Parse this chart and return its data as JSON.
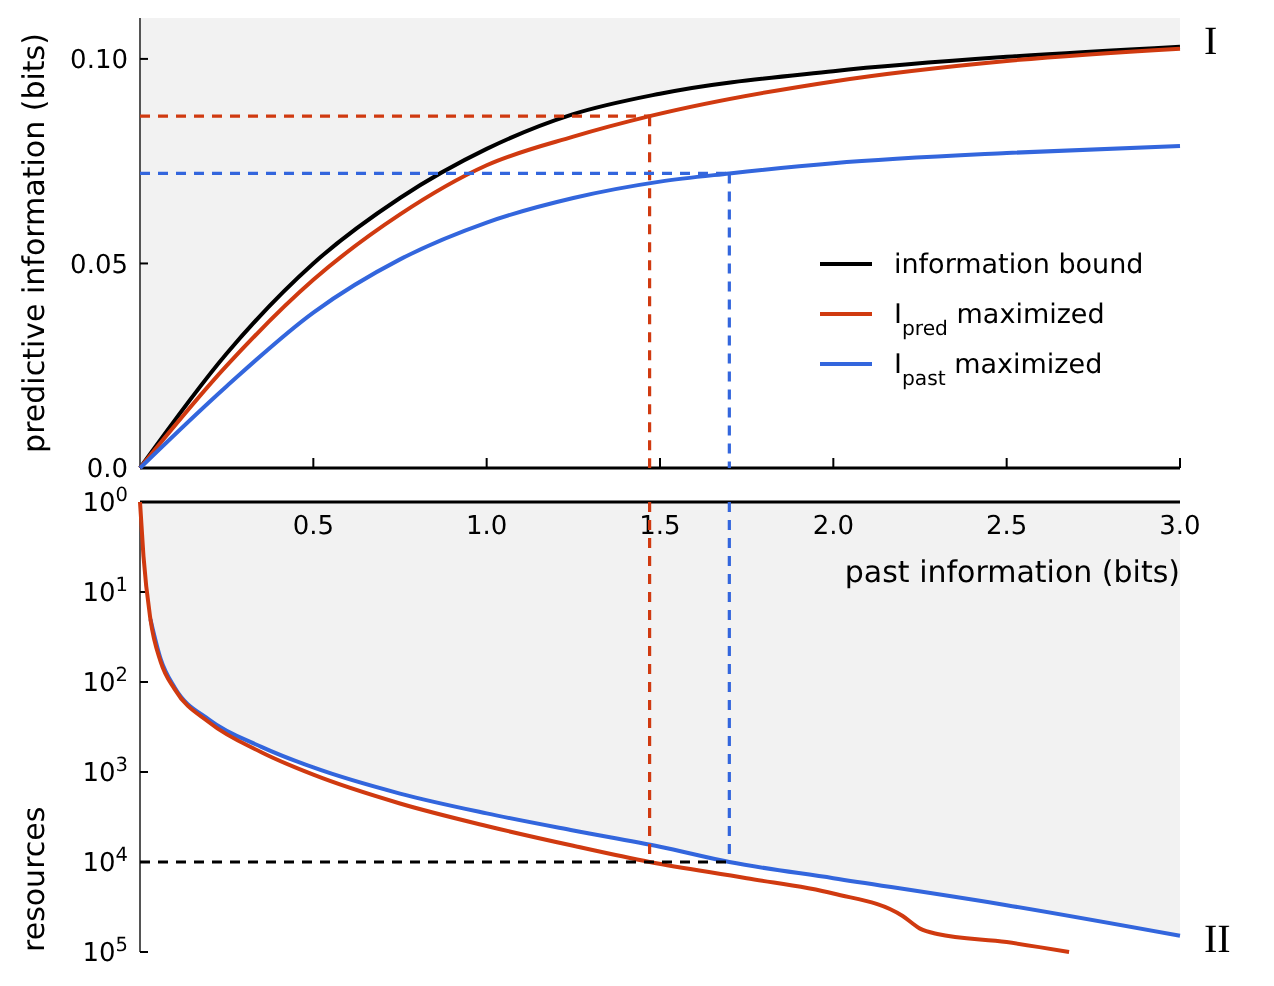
{
  "chart_data": [
    {
      "type": "line",
      "ylabel": "predictive information (bits)",
      "annotations": [
        "I"
      ],
      "xlim": [
        0,
        3
      ],
      "xticks": [
        0.5,
        1,
        1.5,
        2,
        2.5,
        3
      ],
      "ylim": [
        0,
        0.11
      ],
      "yticks": [
        {
          "value": 0,
          "label": "0.0"
        },
        0.05,
        {
          "value": 0.1,
          "label": "0.10"
        }
      ],
      "tick_labels": "y",
      "legend": "right",
      "series": [
        {
          "name": "information bound",
          "color": "#000000",
          "x": [
            0,
            0.25,
            0.5,
            0.75,
            1,
            1.25,
            1.5,
            2,
            2.5,
            3
          ],
          "values": [
            0,
            0.028,
            0.05,
            0.066,
            0.078,
            0.0865,
            0.0915,
            0.097,
            0.1005,
            0.103
          ],
          "lower": [
            0,
            0.028,
            0.05,
            0.066,
            0.078,
            0.0865,
            0.0915,
            0.097,
            0.1005,
            0.103
          ],
          "upper": [
            0.11,
            0.11,
            0.11,
            0.11,
            0.11,
            0.11,
            0.11,
            0.11,
            0.11,
            0.11
          ]
        },
        {
          "name": "I$_{pred}$ maximized",
          "color": "#d03a10",
          "x": [
            0,
            0.25,
            0.5,
            0.75,
            1,
            1.25,
            1.47,
            2,
            2.5,
            3
          ],
          "values": [
            0,
            0.025,
            0.046,
            0.062,
            0.074,
            0.081,
            0.086,
            0.0945,
            0.0995,
            0.1025
          ]
        },
        {
          "name": "I$_{past}$ maximized",
          "color": "#3366dd",
          "x": [
            0,
            0.25,
            0.5,
            0.75,
            1,
            1.25,
            1.5,
            1.7,
            2,
            2.5,
            3
          ],
          "values": [
            0,
            0.02,
            0.038,
            0.051,
            0.06,
            0.066,
            0.07,
            0.072,
            0.0745,
            0.077,
            0.0787
          ]
        },
        {
          "color": "#d03a10",
          "line_style": "dashed",
          "x": [
            0,
            1.47
          ],
          "values": [
            0.086,
            0.086
          ]
        },
        {
          "color": "#d03a10",
          "line_style": "dashed",
          "x": [
            1.47,
            1.47
          ],
          "values": [
            0.086,
            0
          ]
        },
        {
          "color": "#3366dd",
          "line_style": "dashed",
          "x": [
            0,
            1.7
          ],
          "values": [
            0.072,
            0.072
          ]
        },
        {
          "color": "#3366dd",
          "line_style": "dashed",
          "x": [
            1.7,
            1.7
          ],
          "values": [
            0.072,
            0
          ]
        }
      ]
    },
    {
      "type": "line",
      "xlabel": "past information (bits)",
      "ylabel": "resources",
      "annotations": [
        "II"
      ],
      "log": "y",
      "xlim": [
        0,
        3
      ],
      "xticks": [
        {
          "value": 0.5,
          "label": "0.5"
        },
        {
          "value": 1,
          "label": "1.0"
        },
        {
          "value": 1.5,
          "label": "1.5"
        },
        {
          "value": 2,
          "label": "2.0"
        },
        {
          "value": 2.5,
          "label": "2.5"
        },
        {
          "value": 3,
          "label": "3.0"
        }
      ],
      "ylim": [
        100000,
        1
      ],
      "yticks": [
        {
          "value": 1,
          "label": "10$^{0}$"
        },
        {
          "value": 10,
          "label": "10$^{1}$"
        },
        {
          "value": 100,
          "label": "10$^{2}$"
        },
        {
          "value": 1000,
          "label": "10$^{3}$"
        },
        {
          "value": 10000,
          "label": "10$^{4}$"
        },
        {
          "value": 100000,
          "label": "10$^{5}$"
        }
      ],
      "series": [
        {
          "color": "#3366dd",
          "x": [
            0,
            0.01,
            0.03,
            0.06,
            0.1,
            0.2,
            0.35,
            0.5,
            0.75,
            1,
            1.25,
            1.5,
            1.7,
            2,
            2.5,
            3
          ],
          "values": [
            null,
            null,
            20,
            56,
            115,
            263,
            525,
            891,
            1738,
            2884,
            4467,
            6761,
            10000,
            15136,
            30200,
            66069
          ],
          "lower": [
            1,
            1,
            1,
            1,
            1,
            1,
            1,
            1,
            1,
            1,
            1,
            1,
            1,
            1,
            1,
            1
          ],
          "upper": [
            1,
            4,
            20,
            56,
            115,
            263,
            525,
            891,
            1738,
            2884,
            4467,
            6761,
            10000,
            15136,
            30200,
            66069
          ]
        },
        {
          "color": "#d03a10",
          "x": [
            0,
            0.01,
            0.03,
            0.06,
            0.1,
            0.2,
            0.35,
            0.5,
            0.75,
            1,
            1.25,
            1.47,
            1.75,
            2,
            2.2,
            2.25,
            2.3,
            2.5,
            2.68
          ],
          "values": [
            1,
            4,
            20,
            60,
            120,
            282,
            603,
            1072,
            2239,
            3981,
            6607,
            10000,
            15136,
            22387,
            39811,
            54954,
            63096,
            77625,
            100000
          ]
        },
        {
          "color": "#d03a10",
          "line_style": "dashed",
          "x": [
            1.47,
            1.47
          ],
          "values": [
            1,
            10000
          ]
        },
        {
          "color": "#3366dd",
          "line_style": "dashed",
          "x": [
            1.7,
            1.7
          ],
          "values": [
            1,
            10000
          ]
        },
        {
          "color": "#000000",
          "line_style": "dashed",
          "x": [
            0,
            1.7
          ],
          "values": [
            10000,
            10000
          ]
        }
      ]
    }
  ]
}
